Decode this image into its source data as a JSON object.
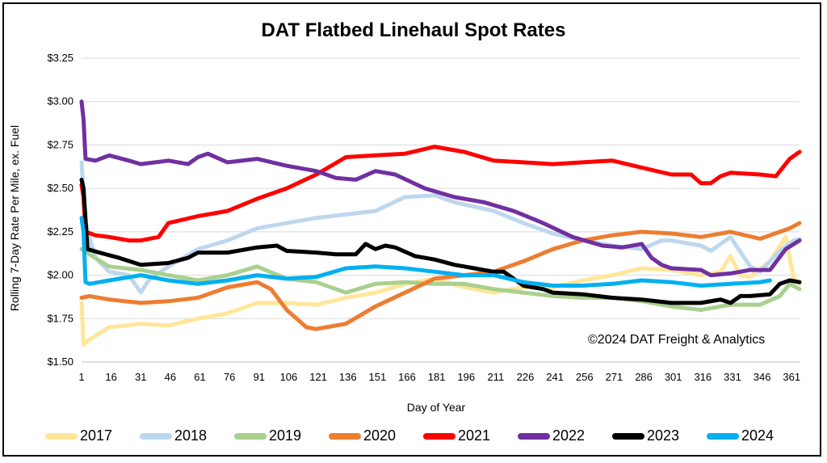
{
  "chart_data": {
    "type": "line",
    "title": "DAT Flatbed Linehaul Spot Rates",
    "xlabel": "Day of Year",
    "ylabel": "Rolling 7-Day Rate Per Mile, ex. Fuel",
    "annotation": "©2024 DAT Freight & Analytics",
    "xlim": [
      1,
      365
    ],
    "ylim": [
      1.5,
      3.25
    ],
    "y_ticks": [
      1.5,
      1.75,
      2.0,
      2.25,
      2.5,
      2.75,
      3.0,
      3.25
    ],
    "y_tick_labels": [
      "$1.50",
      "$1.75",
      "$2.00",
      "$2.25",
      "$2.50",
      "$2.75",
      "$3.00",
      "$3.25"
    ],
    "x_ticks": [
      1,
      16,
      31,
      46,
      61,
      76,
      91,
      106,
      121,
      136,
      151,
      166,
      181,
      196,
      211,
      226,
      241,
      256,
      271,
      286,
      301,
      316,
      331,
      346,
      361
    ],
    "x_tick_labels": [
      "1",
      "16",
      "31",
      "46",
      "61",
      "76",
      "91",
      "106",
      "121",
      "136",
      "151",
      "166",
      "181",
      "196",
      "211",
      "226",
      "241",
      "256",
      "271",
      "286",
      "301",
      "316",
      "331",
      "346",
      "361"
    ],
    "grid": "horizontal",
    "legend_position": "bottom",
    "series": [
      {
        "name": "2017",
        "color": "#FFE699",
        "x": [
          1,
          2,
          5,
          15,
          31,
          45,
          60,
          75,
          90,
          105,
          120,
          135,
          150,
          165,
          180,
          195,
          210,
          225,
          240,
          255,
          270,
          285,
          300,
          315,
          325,
          330,
          335,
          340,
          350,
          358,
          362,
          365
        ],
        "y": [
          1.84,
          1.6,
          1.63,
          1.7,
          1.72,
          1.71,
          1.75,
          1.78,
          1.84,
          1.84,
          1.83,
          1.87,
          1.9,
          1.95,
          1.98,
          1.93,
          1.9,
          1.93,
          1.93,
          1.97,
          2.0,
          2.04,
          2.03,
          2.0,
          2.02,
          2.11,
          2.0,
          1.99,
          2.08,
          2.22,
          1.98,
          1.95
        ]
      },
      {
        "name": "2018",
        "color": "#BDD7EE",
        "x": [
          1,
          3,
          8,
          15,
          25,
          31,
          35,
          45,
          60,
          75,
          90,
          105,
          120,
          135,
          150,
          165,
          180,
          190,
          210,
          225,
          240,
          255,
          270,
          285,
          295,
          300,
          315,
          320,
          330,
          340,
          345,
          355,
          362,
          365
        ],
        "y": [
          2.65,
          2.3,
          2.1,
          2.02,
          2.0,
          1.9,
          1.97,
          2.05,
          2.15,
          2.2,
          2.27,
          2.3,
          2.33,
          2.35,
          2.37,
          2.45,
          2.46,
          2.42,
          2.37,
          2.3,
          2.24,
          2.2,
          2.17,
          2.15,
          2.2,
          2.2,
          2.17,
          2.14,
          2.22,
          2.05,
          2.02,
          2.14,
          2.2,
          2.21
        ]
      },
      {
        "name": "2019",
        "color": "#A9D08E",
        "x": [
          1,
          5,
          15,
          31,
          45,
          60,
          75,
          90,
          105,
          120,
          135,
          150,
          165,
          180,
          195,
          210,
          225,
          240,
          255,
          270,
          285,
          300,
          315,
          330,
          345,
          355,
          360,
          365
        ],
        "y": [
          2.15,
          2.12,
          2.05,
          2.03,
          2.0,
          1.97,
          2.0,
          2.05,
          1.98,
          1.96,
          1.9,
          1.95,
          1.96,
          1.95,
          1.95,
          1.92,
          1.9,
          1.88,
          1.87,
          1.87,
          1.85,
          1.82,
          1.8,
          1.83,
          1.83,
          1.88,
          1.95,
          1.92
        ]
      },
      {
        "name": "2020",
        "color": "#ED7D31",
        "x": [
          1,
          5,
          15,
          31,
          45,
          60,
          75,
          90,
          97,
          105,
          115,
          120,
          135,
          150,
          165,
          180,
          195,
          210,
          225,
          240,
          255,
          270,
          285,
          300,
          315,
          330,
          345,
          360,
          365
        ],
        "y": [
          1.87,
          1.88,
          1.86,
          1.84,
          1.85,
          1.87,
          1.93,
          1.96,
          1.92,
          1.8,
          1.7,
          1.69,
          1.72,
          1.82,
          1.9,
          1.98,
          2.0,
          2.02,
          2.08,
          2.15,
          2.2,
          2.23,
          2.25,
          2.24,
          2.22,
          2.25,
          2.21,
          2.27,
          2.3
        ]
      },
      {
        "name": "2021",
        "color": "#FF0000",
        "x": [
          1,
          2,
          3,
          8,
          15,
          25,
          31,
          40,
          45,
          60,
          75,
          90,
          105,
          120,
          135,
          150,
          165,
          180,
          195,
          210,
          225,
          240,
          255,
          270,
          285,
          300,
          310,
          315,
          320,
          325,
          330,
          345,
          353,
          360,
          365
        ],
        "y": [
          2.52,
          2.45,
          2.25,
          2.23,
          2.22,
          2.2,
          2.2,
          2.22,
          2.3,
          2.34,
          2.37,
          2.44,
          2.5,
          2.58,
          2.68,
          2.69,
          2.7,
          2.74,
          2.71,
          2.66,
          2.65,
          2.64,
          2.65,
          2.66,
          2.62,
          2.58,
          2.58,
          2.53,
          2.53,
          2.57,
          2.59,
          2.58,
          2.57,
          2.67,
          2.71
        ]
      },
      {
        "name": "2022",
        "color": "#7030A0",
        "x": [
          1,
          2,
          3,
          8,
          15,
          25,
          31,
          45,
          55,
          60,
          65,
          75,
          90,
          105,
          120,
          130,
          140,
          150,
          160,
          175,
          190,
          205,
          220,
          235,
          250,
          265,
          275,
          285,
          290,
          295,
          300,
          315,
          320,
          330,
          340,
          350,
          358,
          365
        ],
        "y": [
          3.0,
          2.9,
          2.67,
          2.66,
          2.69,
          2.66,
          2.64,
          2.66,
          2.64,
          2.68,
          2.7,
          2.65,
          2.67,
          2.63,
          2.6,
          2.56,
          2.55,
          2.6,
          2.58,
          2.5,
          2.45,
          2.42,
          2.37,
          2.3,
          2.22,
          2.17,
          2.16,
          2.18,
          2.1,
          2.06,
          2.04,
          2.03,
          2.0,
          2.01,
          2.03,
          2.03,
          2.15,
          2.2
        ]
      },
      {
        "name": "2023",
        "color": "#000000",
        "x": [
          1,
          2,
          4,
          10,
          20,
          31,
          45,
          55,
          60,
          75,
          90,
          100,
          105,
          120,
          130,
          140,
          145,
          150,
          155,
          160,
          170,
          180,
          190,
          195,
          200,
          210,
          215,
          220,
          225,
          235,
          240,
          255,
          270,
          285,
          300,
          315,
          325,
          330,
          335,
          340,
          350,
          355,
          360,
          365
        ],
        "y": [
          2.55,
          2.5,
          2.15,
          2.13,
          2.1,
          2.06,
          2.07,
          2.1,
          2.13,
          2.13,
          2.16,
          2.17,
          2.14,
          2.13,
          2.12,
          2.12,
          2.18,
          2.15,
          2.17,
          2.16,
          2.11,
          2.09,
          2.06,
          2.05,
          2.04,
          2.02,
          2.02,
          1.98,
          1.94,
          1.92,
          1.9,
          1.89,
          1.87,
          1.86,
          1.84,
          1.84,
          1.86,
          1.84,
          1.88,
          1.88,
          1.89,
          1.95,
          1.97,
          1.96
        ]
      },
      {
        "name": "2024",
        "color": "#00B0F0",
        "x": [
          1,
          2,
          3,
          5,
          15,
          31,
          45,
          60,
          75,
          90,
          105,
          120,
          135,
          150,
          165,
          180,
          195,
          210,
          225,
          240,
          255,
          270,
          285,
          300,
          315,
          330,
          345,
          350
        ],
        "y": [
          2.33,
          2.25,
          1.96,
          1.95,
          1.97,
          2.0,
          1.97,
          1.95,
          1.97,
          2.0,
          1.98,
          1.99,
          2.04,
          2.05,
          2.04,
          2.02,
          2.0,
          2.0,
          1.96,
          1.94,
          1.94,
          1.95,
          1.97,
          1.96,
          1.94,
          1.95,
          1.96,
          1.97
        ]
      }
    ]
  }
}
